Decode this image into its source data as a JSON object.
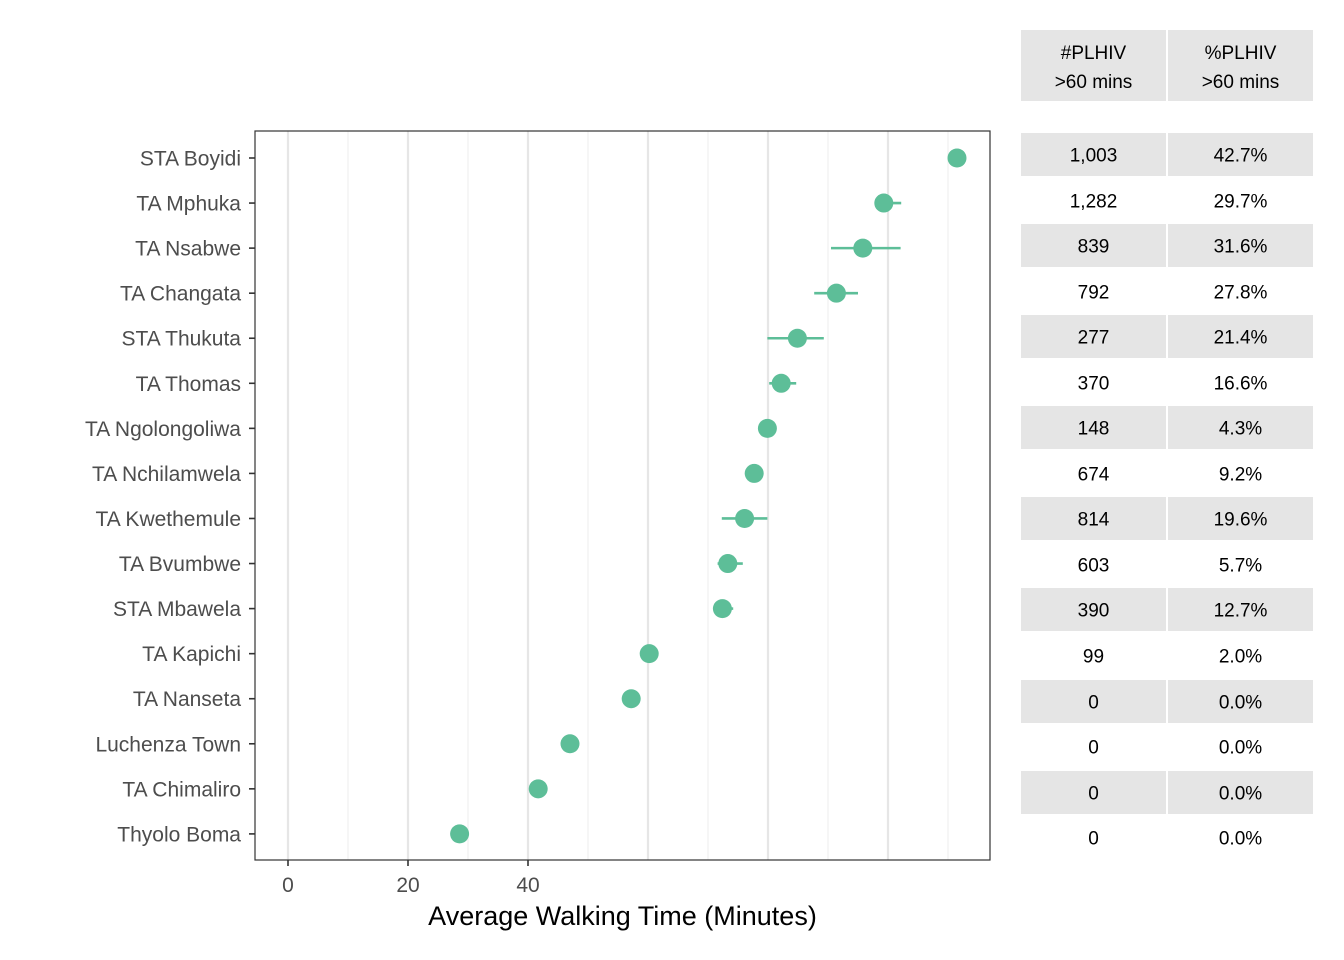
{
  "chart_data": {
    "type": "scatter",
    "xlabel": "Average Walking Time (Minutes)",
    "x_ticks": [
      0,
      20,
      40
    ],
    "xlim": [
      -5.5,
      117
    ],
    "point_color": "#5dbe98",
    "categories": [
      "STA Boyidi",
      "TA Mphuka",
      "TA Nsabwe",
      "TA Changata",
      "STA Thukuta",
      "TA Thomas",
      "TA Ngolongoliwa",
      "TA Nchilamwela",
      "TA Kwethemule",
      "TA Bvumbwe",
      "STA Mbawela",
      "TA Kapichi",
      "TA Nanseta",
      "Luchenza Town",
      "TA Chimaliro",
      "Thyolo Boma"
    ],
    "values": [
      111.5,
      99.3,
      95.8,
      91.4,
      84.9,
      82.2,
      79.9,
      77.7,
      76.1,
      73.3,
      72.4,
      60.2,
      57.2,
      47.0,
      41.7,
      28.6
    ],
    "error_low": [
      111.5,
      97.8,
      90.5,
      87.7,
      79.9,
      80.2,
      79.9,
      77.7,
      72.3,
      71.6,
      71.7,
      60.2,
      57.2,
      47.0,
      41.7,
      28.6
    ],
    "error_high": [
      111.5,
      102.2,
      102.1,
      95.0,
      89.3,
      84.7,
      79.9,
      77.7,
      79.9,
      75.8,
      74.2,
      60.2,
      57.2,
      47.0,
      41.7,
      28.6
    ],
    "table": {
      "headers": [
        {
          "line1": "#PLHIV",
          "line2": ">60 mins"
        },
        {
          "line1": "%PLHIV",
          "line2": ">60 mins"
        }
      ],
      "plhiv_count": [
        "1,003",
        "1,282",
        "839",
        "792",
        "277",
        "370",
        "148",
        "674",
        "814",
        "603",
        "390",
        "99",
        "0",
        "0",
        "0",
        "0"
      ],
      "plhiv_pct": [
        "42.7%",
        "29.7%",
        "31.6%",
        "27.8%",
        "21.4%",
        "16.6%",
        "4.3%",
        "9.2%",
        "19.6%",
        "5.7%",
        "12.7%",
        "2.0%",
        "0.0%",
        "0.0%",
        "0.0%",
        "0.0%"
      ]
    }
  }
}
